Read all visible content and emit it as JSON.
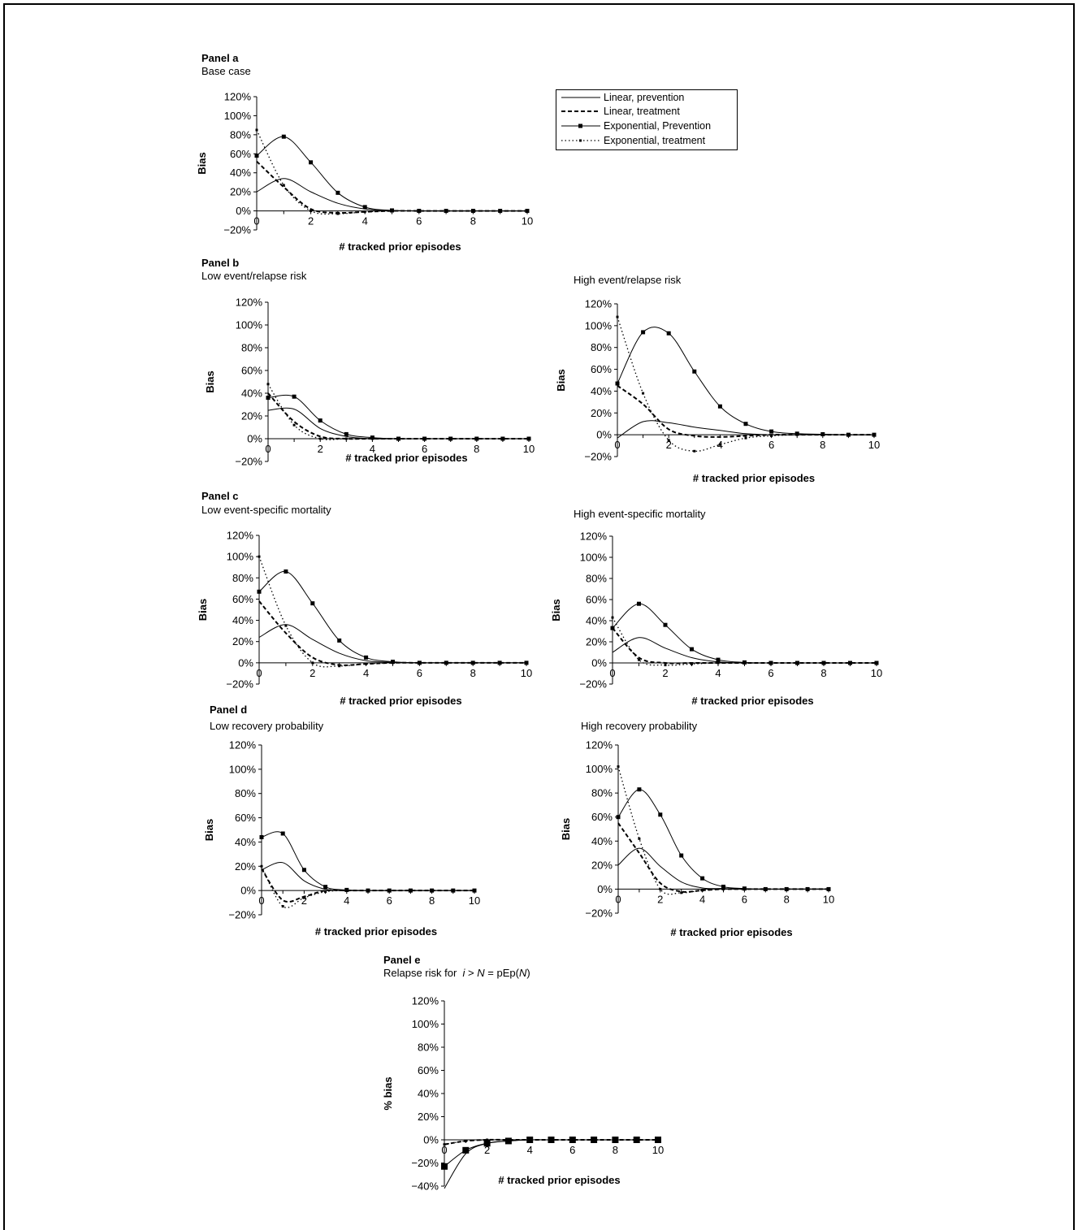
{
  "panels": {
    "a": {
      "label": "Panel a",
      "sub": "Base case"
    },
    "b": {
      "label": "Panel b",
      "sub_left": "Low event/relapse risk",
      "sub_right": "High event/relapse risk"
    },
    "c": {
      "label": "Panel c",
      "sub_left": "Low event-specific mortality",
      "sub_right": "High event-specific mortality"
    },
    "d": {
      "label": "Panel d",
      "sub_left": "Low recovery probability",
      "sub_right": "High recovery probability"
    },
    "e": {
      "label": "Panel e",
      "sub_prefix": "Relapse risk for",
      "sub_i": "i",
      "sub_gt": " > ",
      "sub_N": "N",
      "sub_eq": " = pEp(",
      "sub_N2": "N",
      "sub_close": ")"
    }
  },
  "legend": {
    "entries": [
      {
        "label": "Linear, prevention",
        "style": "solid"
      },
      {
        "label": "Linear, treatment",
        "style": "dashed"
      },
      {
        "label": "Exponential, Prevention",
        "style": "solid-square"
      },
      {
        "label": "Exponential, treatment",
        "style": "dotted"
      }
    ]
  },
  "colors": {
    "line": "#000000",
    "background": "#ffffff"
  },
  "chart_data": [
    {
      "id": "a",
      "type": "line",
      "xlabel": "# tracked prior episodes",
      "ylabel": "Bias",
      "ylim": [
        -20,
        120
      ],
      "ytick_labels": [
        "−20%",
        "0%",
        "20%",
        "40%",
        "60%",
        "80%",
        "100%",
        "120%"
      ],
      "xlim": [
        0,
        10
      ],
      "xtick_labels": [
        "0",
        "2",
        "4",
        "6",
        "8",
        "10"
      ],
      "x": [
        0,
        1,
        2,
        3,
        4,
        5,
        6,
        7,
        8,
        9,
        10
      ],
      "series": [
        {
          "name": "Linear, prevention",
          "values": [
            20,
            34,
            20,
            8,
            2,
            0.5,
            0,
            0,
            0,
            0,
            0
          ]
        },
        {
          "name": "Linear, treatment",
          "values": [
            52,
            25,
            2,
            -2,
            -1,
            0,
            0,
            0,
            0,
            0,
            0
          ]
        },
        {
          "name": "Exponential, Prevention",
          "values": [
            58,
            78,
            51,
            19,
            4,
            0.5,
            0,
            0,
            0,
            0,
            0
          ]
        },
        {
          "name": "Exponential, treatment",
          "values": [
            85,
            27,
            0,
            -3,
            -1,
            0,
            0,
            0,
            0,
            0,
            0
          ]
        }
      ]
    },
    {
      "id": "b-low",
      "type": "line",
      "xlabel": "# tracked prior episodes",
      "ylabel": "Bias",
      "ylim": [
        -20,
        120
      ],
      "ytick_labels": [
        "−20%",
        "0%",
        "20%",
        "40%",
        "60%",
        "80%",
        "100%",
        "120%"
      ],
      "xlim": [
        0,
        10
      ],
      "xtick_labels": [
        "0",
        "2",
        "4",
        "6",
        "8",
        "10"
      ],
      "x": [
        0,
        1,
        2,
        3,
        4,
        5,
        6,
        7,
        8,
        9,
        10
      ],
      "series": [
        {
          "name": "Linear, prevention",
          "values": [
            25,
            26,
            9,
            2,
            0,
            0,
            0,
            0,
            0,
            0,
            0
          ]
        },
        {
          "name": "Linear, treatment",
          "values": [
            40,
            15,
            2,
            0,
            0,
            0,
            0,
            0,
            0,
            0,
            0
          ]
        },
        {
          "name": "Exponential, Prevention",
          "values": [
            36,
            37,
            16,
            4,
            1,
            0,
            0,
            0,
            0,
            0,
            0
          ]
        },
        {
          "name": "Exponential, treatment",
          "values": [
            48,
            12,
            0,
            0,
            0,
            0,
            0,
            0,
            0,
            0,
            0
          ]
        }
      ]
    },
    {
      "id": "b-high",
      "type": "line",
      "xlabel": "# tracked prior episodes",
      "ylabel": "Bias",
      "ylim": [
        -20,
        120
      ],
      "ytick_labels": [
        "−20%",
        "0%",
        "20%",
        "40%",
        "60%",
        "80%",
        "100%",
        "120%"
      ],
      "xlim": [
        0,
        10
      ],
      "xtick_labels": [
        "0",
        "2",
        "4",
        "6",
        "8",
        "10"
      ],
      "x": [
        0,
        1,
        2,
        3,
        4,
        5,
        6,
        7,
        8,
        9,
        10
      ],
      "series": [
        {
          "name": "Linear, prevention",
          "values": [
            -3,
            12,
            11,
            7,
            4,
            1,
            0,
            0,
            0,
            0,
            0
          ]
        },
        {
          "name": "Linear, treatment",
          "values": [
            45,
            28,
            5,
            -1,
            -2,
            -1,
            0,
            0,
            0,
            0,
            0
          ]
        },
        {
          "name": "Exponential, Prevention",
          "values": [
            47,
            94,
            93,
            58,
            26,
            10,
            3,
            1,
            0.5,
            0,
            0
          ]
        },
        {
          "name": "Exponential, treatment",
          "values": [
            108,
            38,
            -5,
            -15,
            -9,
            -3,
            -1,
            0,
            0,
            0,
            0
          ]
        }
      ]
    },
    {
      "id": "c-low",
      "type": "line",
      "xlabel": "# tracked prior episodes",
      "ylabel": "Bias",
      "ylim": [
        -20,
        120
      ],
      "ytick_labels": [
        "−20%",
        "0%",
        "20%",
        "40%",
        "60%",
        "80%",
        "100%",
        "120%"
      ],
      "xlim": [
        0,
        10
      ],
      "xtick_labels": [
        "0",
        "2",
        "4",
        "6",
        "8",
        "10"
      ],
      "x": [
        0,
        1,
        2,
        3,
        4,
        5,
        6,
        7,
        8,
        9,
        10
      ],
      "series": [
        {
          "name": "Linear, prevention",
          "values": [
            24,
            36,
            22,
            9,
            2,
            0.5,
            0,
            0,
            0,
            0,
            0
          ]
        },
        {
          "name": "Linear, treatment",
          "values": [
            58,
            28,
            5,
            -2,
            -1,
            0,
            0,
            0,
            0,
            0,
            0
          ]
        },
        {
          "name": "Exponential, Prevention",
          "values": [
            67,
            86,
            56,
            21,
            5,
            1,
            0,
            0,
            0,
            0,
            0
          ]
        },
        {
          "name": "Exponential, treatment",
          "values": [
            100,
            35,
            0,
            -3,
            -1,
            0,
            0,
            0,
            0,
            0,
            0
          ]
        }
      ]
    },
    {
      "id": "c-high",
      "type": "line",
      "xlabel": "# tracked prior episodes",
      "ylabel": "Bias",
      "ylim": [
        -20,
        120
      ],
      "ytick_labels": [
        "−20%",
        "0%",
        "20%",
        "40%",
        "60%",
        "80%",
        "100%",
        "120%"
      ],
      "xlim": [
        0,
        10
      ],
      "xtick_labels": [
        "0",
        "2",
        "4",
        "6",
        "8",
        "10"
      ],
      "x": [
        0,
        1,
        2,
        3,
        4,
        5,
        6,
        7,
        8,
        9,
        10
      ],
      "series": [
        {
          "name": "Linear, prevention",
          "values": [
            10,
            24,
            14,
            5,
            1,
            0,
            0,
            0,
            0,
            0,
            0
          ]
        },
        {
          "name": "Linear, treatment",
          "values": [
            33,
            5,
            0,
            0,
            0,
            0,
            0,
            0,
            0,
            0,
            0
          ]
        },
        {
          "name": "Exponential, Prevention",
          "values": [
            33,
            56,
            36,
            13,
            3,
            0.5,
            0,
            0,
            0,
            0,
            0
          ]
        },
        {
          "name": "Exponential, treatment",
          "values": [
            43,
            3,
            -2,
            -1,
            0,
            0,
            0,
            0,
            0,
            0,
            0
          ]
        }
      ]
    },
    {
      "id": "d-low",
      "type": "line",
      "xlabel": "# tracked prior episodes",
      "ylabel": "Bias",
      "ylim": [
        -20,
        120
      ],
      "ytick_labels": [
        "−20%",
        "0%",
        "20%",
        "40%",
        "60%",
        "80%",
        "100%",
        "120%"
      ],
      "xlim": [
        0,
        10
      ],
      "xtick_labels": [
        "0",
        "2",
        "4",
        "6",
        "8",
        "10"
      ],
      "x": [
        0,
        1,
        2,
        3,
        4,
        5,
        6,
        7,
        8,
        9,
        10
      ],
      "series": [
        {
          "name": "Linear, prevention",
          "values": [
            17,
            23,
            8,
            1,
            0,
            0,
            0,
            0,
            0,
            0,
            0
          ]
        },
        {
          "name": "Linear, treatment",
          "values": [
            18,
            -8,
            -5,
            0,
            0,
            0,
            0,
            0,
            0,
            0,
            0
          ]
        },
        {
          "name": "Exponential, Prevention",
          "values": [
            44,
            47,
            17,
            3,
            0.5,
            0,
            0,
            0,
            0,
            0,
            0
          ]
        },
        {
          "name": "Exponential, treatment",
          "values": [
            20,
            -13,
            -6,
            -1,
            0,
            0,
            0,
            0,
            0,
            0,
            0
          ]
        }
      ]
    },
    {
      "id": "d-high",
      "type": "line",
      "xlabel": "# tracked prior episodes",
      "ylabel": "Bias",
      "ylim": [
        -20,
        120
      ],
      "ytick_labels": [
        "−20%",
        "0%",
        "20%",
        "40%",
        "60%",
        "80%",
        "100%",
        "120%"
      ],
      "xlim": [
        0,
        10
      ],
      "xtick_labels": [
        "0",
        "2",
        "4",
        "6",
        "8",
        "10"
      ],
      "x": [
        0,
        1,
        2,
        3,
        4,
        5,
        6,
        7,
        8,
        9,
        10
      ],
      "series": [
        {
          "name": "Linear, prevention",
          "values": [
            20,
            34,
            19,
            6,
            1,
            0.5,
            0,
            0,
            0,
            0,
            0
          ]
        },
        {
          "name": "Linear, treatment",
          "values": [
            55,
            30,
            5,
            -2,
            -1,
            0,
            0,
            0,
            0,
            0,
            0
          ]
        },
        {
          "name": "Exponential, Prevention",
          "values": [
            60,
            83,
            62,
            28,
            9,
            2,
            0.5,
            0,
            0,
            0,
            0
          ]
        },
        {
          "name": "Exponential, treatment",
          "values": [
            102,
            42,
            0,
            -3,
            -1,
            0,
            0,
            0,
            0,
            0,
            0
          ]
        }
      ]
    },
    {
      "id": "e",
      "type": "line",
      "xlabel": "# tracked prior episodes",
      "ylabel": "% bias",
      "ylim": [
        -40,
        120
      ],
      "ytick_labels": [
        "−40%",
        "−20%",
        "0%",
        "20%",
        "40%",
        "60%",
        "80%",
        "100%",
        "120%"
      ],
      "xlim": [
        0,
        10
      ],
      "xtick_labels": [
        "0",
        "2",
        "4",
        "6",
        "8",
        "10"
      ],
      "x": [
        0,
        1,
        2,
        3,
        4,
        5,
        6,
        7,
        8,
        9,
        10
      ],
      "series": [
        {
          "name": "Linear, prevention",
          "values": [
            -42,
            -12,
            -3,
            -1,
            0,
            0,
            0,
            0,
            0,
            0,
            0
          ]
        },
        {
          "name": "Linear, treatment",
          "values": [
            -4,
            -1,
            0,
            0,
            0,
            0,
            0,
            0,
            0,
            0,
            0
          ]
        },
        {
          "name": "Exponential, Prevention",
          "values": [
            -23,
            -9,
            -3,
            -1,
            0,
            0,
            0,
            0,
            0,
            0,
            0
          ]
        },
        {
          "name": "Exponential, treatment",
          "values": [
            -4,
            -1,
            0,
            0,
            0,
            0,
            0,
            0,
            0,
            0,
            0
          ]
        }
      ]
    }
  ]
}
